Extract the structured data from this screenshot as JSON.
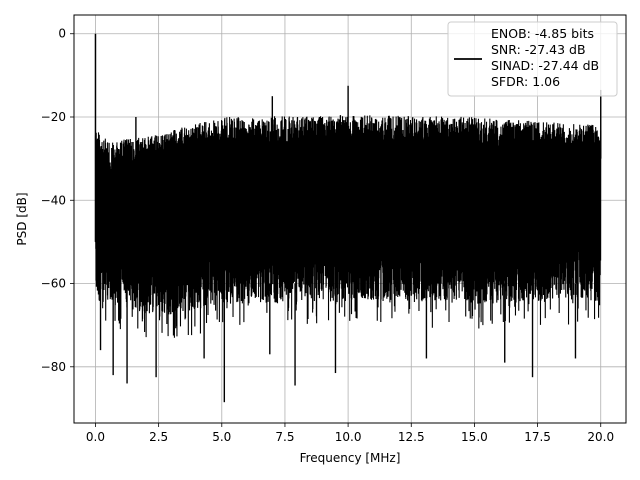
{
  "chart_data": {
    "type": "line",
    "title": "",
    "xlabel": "Frequency [MHz]",
    "ylabel": "PSD [dB]",
    "xlim": [
      -0.85,
      21.0
    ],
    "ylim": [
      -93.5,
      4.5
    ],
    "xticks": [
      0.0,
      2.5,
      5.0,
      7.5,
      10.0,
      12.5,
      15.0,
      17.5,
      20.0
    ],
    "xtick_labels": [
      "0.0",
      "2.5",
      "5.0",
      "7.5",
      "10.0",
      "12.5",
      "15.0",
      "17.5",
      "20.0"
    ],
    "yticks": [
      0,
      -20,
      -40,
      -60,
      -80
    ],
    "ytick_labels": [
      "0",
      "−20",
      "−40",
      "−60",
      "−80"
    ],
    "grid": true,
    "legend_position": "top-right",
    "line_color": "#000000",
    "series": [
      {
        "name": "ENOB: -4.85 bits\nSNR: -27.43 dB\nSINAD: -27.44 dB\nSFDR: 1.06",
        "legend_lines": [
          "ENOB: -4.85 bits",
          "SNR: -27.43 dB",
          "SINAD: -27.44 dB",
          "SFDR: 1.06"
        ],
        "x_range": [
          0.0,
          20.0
        ],
        "fundamental": {
          "x": 0.0,
          "y": 0.0
        },
        "noise_floor_upper_envelope": [
          {
            "x": 0.0,
            "y": -22
          },
          {
            "x": 0.5,
            "y": -26
          },
          {
            "x": 2.5,
            "y": -24
          },
          {
            "x": 5.0,
            "y": -20
          },
          {
            "x": 10.0,
            "y": -19.5
          },
          {
            "x": 15.0,
            "y": -20
          },
          {
            "x": 17.5,
            "y": -21
          },
          {
            "x": 20.0,
            "y": -22
          }
        ],
        "noise_floor_lower_envelope": [
          {
            "x": 0.0,
            "y": -64
          },
          {
            "x": 2.5,
            "y": -68
          },
          {
            "x": 5.0,
            "y": -65
          },
          {
            "x": 10.0,
            "y": -64
          },
          {
            "x": 15.0,
            "y": -65
          },
          {
            "x": 20.0,
            "y": -64
          }
        ],
        "spurs": [
          {
            "x": 1.6,
            "y": -20
          },
          {
            "x": 7.0,
            "y": -15
          },
          {
            "x": 10.0,
            "y": -12.5
          },
          {
            "x": 20.0,
            "y": -13.5
          }
        ],
        "deep_nulls": [
          {
            "x": 0.2,
            "y": -76
          },
          {
            "x": 0.7,
            "y": -82
          },
          {
            "x": 1.25,
            "y": -84
          },
          {
            "x": 2.4,
            "y": -82.5
          },
          {
            "x": 4.3,
            "y": -78
          },
          {
            "x": 5.1,
            "y": -88.5
          },
          {
            "x": 6.9,
            "y": -77
          },
          {
            "x": 7.9,
            "y": -84.5
          },
          {
            "x": 9.5,
            "y": -81.5
          },
          {
            "x": 13.1,
            "y": -78
          },
          {
            "x": 16.2,
            "y": -79
          },
          {
            "x": 17.3,
            "y": -82.5
          },
          {
            "x": 19.0,
            "y": -78
          }
        ]
      }
    ]
  }
}
